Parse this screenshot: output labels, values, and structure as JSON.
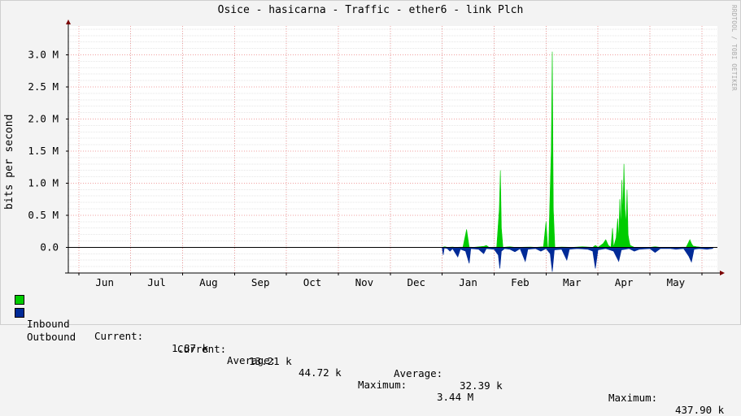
{
  "title": "Osice - hasicarna - Traffic - ether6 - link Plch",
  "watermark": "RRDTOOL / TOBI OETIKER",
  "chart_data": {
    "type": "area",
    "title": "Osice - hasicarna - Traffic - ether6 - link Plch",
    "ylabel": "bits per second",
    "xlabel": "",
    "x_ticks": [
      "Jun",
      "Jul",
      "Aug",
      "Sep",
      "Oct",
      "Nov",
      "Dec",
      "Jan",
      "Feb",
      "Mar",
      "Apr",
      "May"
    ],
    "y_ticks": [
      "3.0 M",
      "2.5 M",
      "2.0 M",
      "1.5 M",
      "1.0 M",
      "0.5 M",
      "0.0"
    ],
    "y_tick_values": [
      3000000,
      2500000,
      2000000,
      1500000,
      1000000,
      500000,
      0
    ],
    "ylim": [
      -400000,
      3450000
    ],
    "x_range_months": [
      -0.7,
      11.8
    ],
    "grid": true,
    "series": [
      {
        "name": "Inbound",
        "color": "#00cc00",
        "direction": "up",
        "points": [
          [
            6.5,
            0
          ],
          [
            6.55,
            10000
          ],
          [
            6.6,
            0
          ],
          [
            6.7,
            5000
          ],
          [
            6.75,
            0
          ],
          [
            6.9,
            5000
          ],
          [
            6.97,
            280000
          ],
          [
            7.02,
            5000
          ],
          [
            7.1,
            0
          ],
          [
            7.3,
            15000
          ],
          [
            7.35,
            30000
          ],
          [
            7.4,
            0
          ],
          [
            7.55,
            5000
          ],
          [
            7.6,
            600000
          ],
          [
            7.62,
            1200000
          ],
          [
            7.64,
            300000
          ],
          [
            7.67,
            0
          ],
          [
            7.8,
            10000
          ],
          [
            7.9,
            0
          ],
          [
            8.2,
            5000
          ],
          [
            8.3,
            0
          ],
          [
            8.45,
            10000
          ],
          [
            8.5,
            400000
          ],
          [
            8.53,
            10000
          ],
          [
            8.55,
            0
          ],
          [
            8.6,
            1500000
          ],
          [
            8.62,
            3050000
          ],
          [
            8.64,
            600000
          ],
          [
            8.67,
            0
          ],
          [
            8.8,
            5000
          ],
          [
            9.0,
            0
          ],
          [
            9.2,
            10000
          ],
          [
            9.4,
            0
          ],
          [
            9.45,
            30000
          ],
          [
            9.5,
            0
          ],
          [
            9.6,
            60000
          ],
          [
            9.65,
            120000
          ],
          [
            9.7,
            30000
          ],
          [
            9.75,
            0
          ],
          [
            9.78,
            300000
          ],
          [
            9.8,
            0
          ],
          [
            9.85,
            150000
          ],
          [
            9.88,
            450000
          ],
          [
            9.9,
            100000
          ],
          [
            9.92,
            750000
          ],
          [
            9.94,
            300000
          ],
          [
            9.96,
            1050000
          ],
          [
            9.98,
            500000
          ],
          [
            10.0,
            1300000
          ],
          [
            10.02,
            600000
          ],
          [
            10.04,
            350000
          ],
          [
            10.06,
            900000
          ],
          [
            10.08,
            200000
          ],
          [
            10.1,
            100000
          ],
          [
            10.12,
            30000
          ],
          [
            10.2,
            0
          ],
          [
            10.5,
            0
          ],
          [
            10.6,
            10000
          ],
          [
            10.7,
            0
          ],
          [
            11.0,
            0
          ],
          [
            11.2,
            5000
          ],
          [
            11.27,
            120000
          ],
          [
            11.3,
            60000
          ],
          [
            11.33,
            20000
          ],
          [
            11.4,
            10000
          ],
          [
            11.5,
            0
          ],
          [
            11.7,
            0
          ]
        ]
      },
      {
        "name": "Outbound",
        "color": "#002a97",
        "direction": "down",
        "points": [
          [
            6.5,
            -10000
          ],
          [
            6.52,
            -120000
          ],
          [
            6.54,
            -10000
          ],
          [
            6.6,
            -20000
          ],
          [
            6.65,
            -60000
          ],
          [
            6.7,
            -20000
          ],
          [
            6.8,
            -150000
          ],
          [
            6.85,
            -30000
          ],
          [
            6.95,
            -60000
          ],
          [
            7.02,
            -250000
          ],
          [
            7.05,
            -20000
          ],
          [
            7.2,
            -30000
          ],
          [
            7.3,
            -100000
          ],
          [
            7.35,
            -20000
          ],
          [
            7.5,
            -30000
          ],
          [
            7.58,
            -120000
          ],
          [
            7.61,
            -330000
          ],
          [
            7.64,
            -60000
          ],
          [
            7.7,
            -20000
          ],
          [
            7.8,
            -30000
          ],
          [
            7.9,
            -70000
          ],
          [
            8.0,
            -20000
          ],
          [
            8.1,
            -220000
          ],
          [
            8.15,
            -30000
          ],
          [
            8.3,
            -20000
          ],
          [
            8.4,
            -60000
          ],
          [
            8.5,
            -20000
          ],
          [
            8.58,
            -100000
          ],
          [
            8.62,
            -380000
          ],
          [
            8.66,
            -40000
          ],
          [
            8.8,
            -30000
          ],
          [
            8.9,
            -200000
          ],
          [
            8.95,
            -30000
          ],
          [
            9.1,
            -20000
          ],
          [
            9.3,
            -30000
          ],
          [
            9.4,
            -60000
          ],
          [
            9.45,
            -330000
          ],
          [
            9.5,
            -40000
          ],
          [
            9.65,
            -20000
          ],
          [
            9.8,
            -60000
          ],
          [
            9.9,
            -220000
          ],
          [
            9.95,
            -40000
          ],
          [
            10.1,
            -20000
          ],
          [
            10.2,
            -60000
          ],
          [
            10.3,
            -30000
          ],
          [
            10.5,
            -20000
          ],
          [
            10.6,
            -80000
          ],
          [
            10.7,
            -20000
          ],
          [
            10.9,
            -20000
          ],
          [
            11.0,
            -30000
          ],
          [
            11.15,
            -20000
          ],
          [
            11.25,
            -140000
          ],
          [
            11.3,
            -230000
          ],
          [
            11.35,
            -30000
          ],
          [
            11.45,
            -20000
          ],
          [
            11.6,
            -30000
          ],
          [
            11.7,
            -20000
          ],
          [
            11.72,
            -10000
          ]
        ]
      }
    ]
  },
  "legend": {
    "inbound": {
      "label": "Inbound",
      "current_label": "Current:",
      "current": "1.87 k",
      "average_label": "Average:",
      "average": "44.72 k",
      "maximum_label": "Maximum:",
      "maximum": "3.44 M"
    },
    "outbound": {
      "label": "Outbound",
      "current_label": "Current:",
      "current": "13.21 k",
      "average_label": "Average:",
      "average": "32.39 k",
      "maximum_label": "Maximum:",
      "maximum": "437.90 k"
    }
  }
}
